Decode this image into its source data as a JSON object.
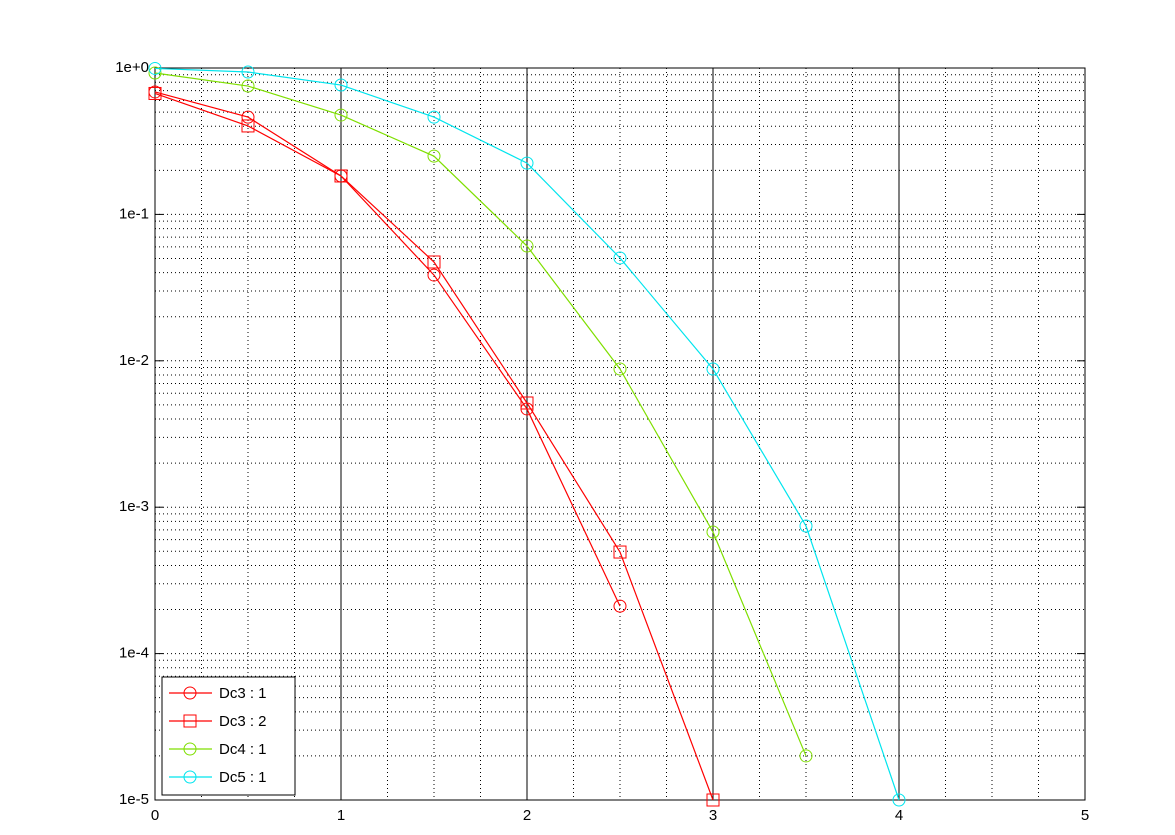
{
  "chart_data": {
    "type": "line",
    "x": [
      0,
      0.5,
      1,
      1.5,
      2,
      2.5,
      3,
      3.5,
      4
    ],
    "series": [
      {
        "name": "Dc3 : 1",
        "color": "#ff0000",
        "marker": "circle",
        "values": [
          0.686,
          0.462,
          0.183,
          0.0385,
          0.00469,
          0.000211,
          null,
          null,
          null
        ]
      },
      {
        "name": "Dc3 : 2",
        "color": "#ff0000",
        "marker": "square",
        "values": [
          0.67,
          0.402,
          0.183,
          0.0473,
          0.00515,
          0.000494,
          1e-05,
          null,
          null
        ]
      },
      {
        "name": "Dc4 : 1",
        "color": "#7fdf00",
        "marker": "circle",
        "values": [
          0.924,
          0.753,
          0.477,
          0.25,
          0.0608,
          0.00879,
          0.000677,
          2e-05,
          null
        ]
      },
      {
        "name": "Dc5 : 1",
        "color": "#00e5ee",
        "marker": "circle",
        "values": [
          0.993,
          0.939,
          0.765,
          0.462,
          0.224,
          0.0504,
          0.00879,
          0.000744,
          1e-05
        ]
      }
    ],
    "xlim": [
      0,
      5
    ],
    "xticks": [
      0,
      1,
      2,
      3,
      4,
      5
    ],
    "ylim": [
      1e-05,
      1
    ],
    "log_y": true,
    "yticks": [
      {
        "value": 1e-05,
        "label": "1e-5"
      },
      {
        "value": 0.0001,
        "label": "1e-4"
      },
      {
        "value": 0.001,
        "label": "1e-3"
      },
      {
        "value": 0.01,
        "label": "1e-2"
      },
      {
        "value": 0.1,
        "label": "1e-1"
      },
      {
        "value": 1,
        "label": "1e+0"
      }
    ],
    "grid": true,
    "minor_grid": true,
    "legend": "lower left"
  }
}
